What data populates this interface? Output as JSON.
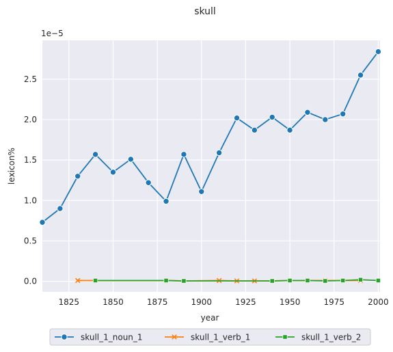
{
  "chart_data": {
    "type": "line",
    "title": "skull",
    "xlabel": "year",
    "ylabel": "lexicon%",
    "offset_label": "1e−5",
    "xlim": [
      1810,
      2001
    ],
    "ylim": [
      -0.13,
      2.98
    ],
    "x_ticks": [
      1825,
      1850,
      1875,
      1900,
      1925,
      1950,
      1975,
      2000
    ],
    "y_ticks": [
      0.0,
      0.5,
      1.0,
      1.5,
      2.0,
      2.5
    ],
    "y_tick_labels": [
      "0.0",
      "0.5",
      "1.0",
      "1.5",
      "2.0",
      "2.5"
    ],
    "grid": true,
    "legend_position": "bottom-center",
    "colors": {
      "plot_bg": "#eaeaf2",
      "grid": "#ffffff"
    },
    "series": [
      {
        "name": "skull_1_noun_1",
        "color": "#1f77b4",
        "marker": "circle",
        "x": [
          1810,
          1820,
          1830,
          1840,
          1850,
          1860,
          1870,
          1880,
          1890,
          1900,
          1910,
          1920,
          1930,
          1940,
          1950,
          1960,
          1970,
          1980,
          1990,
          2000
        ],
        "values": [
          0.73,
          0.9,
          1.3,
          1.57,
          1.35,
          1.51,
          1.22,
          0.99,
          1.57,
          1.11,
          1.59,
          2.02,
          1.87,
          2.03,
          1.87,
          2.09,
          2.0,
          2.07,
          2.55,
          2.84
        ]
      },
      {
        "name": "skull_1_verb_1",
        "color": "#ff7f0e",
        "marker": "x",
        "x": [
          1830,
          1840,
          1880,
          1890,
          1910,
          1920,
          1930,
          1940,
          1950,
          1960,
          1970,
          1980,
          1990
        ],
        "values": [
          0.01,
          0.01,
          0.01,
          0.005,
          0.01,
          0.005,
          0.005,
          0.005,
          0.01,
          0.01,
          0.01,
          0.01,
          0.01
        ]
      },
      {
        "name": "skull_1_verb_2",
        "color": "#2ca02c",
        "marker": "square",
        "x": [
          1840,
          1880,
          1890,
          1940,
          1950,
          1960,
          1970,
          1980,
          1990,
          2000
        ],
        "values": [
          0.01,
          0.01,
          0.005,
          0.005,
          0.01,
          0.01,
          0.005,
          0.01,
          0.02,
          0.01
        ]
      }
    ]
  }
}
